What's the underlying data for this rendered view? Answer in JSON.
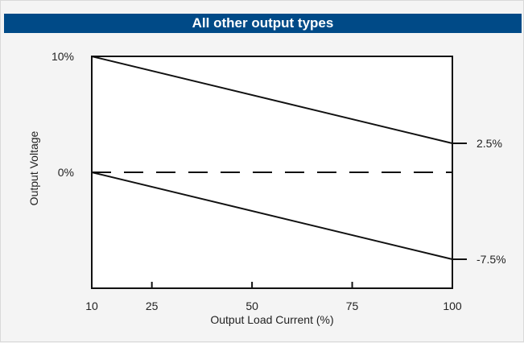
{
  "header": {
    "title": "All other output types"
  },
  "chart_data": {
    "type": "line",
    "xlabel": "Output Load Current (%)",
    "ylabel": "Output Voltage",
    "xlim": [
      10,
      100
    ],
    "ylim": [
      -10,
      10
    ],
    "x_ticks": [
      10,
      25,
      50,
      75,
      100
    ],
    "y_tick_labels": [
      {
        "value": 10,
        "label": "10%"
      },
      {
        "value": 0,
        "label": "0%"
      }
    ],
    "right_labels": [
      {
        "value": 2.5,
        "label": "2.5%"
      },
      {
        "value": -7.5,
        "label": "-7.5%"
      }
    ],
    "series": [
      {
        "x": [
          10,
          100
        ],
        "y": [
          10,
          2.5
        ],
        "style": "solid"
      },
      {
        "x": [
          10,
          100
        ],
        "y": [
          0,
          0
        ],
        "style": "dashed"
      },
      {
        "x": [
          10,
          100
        ],
        "y": [
          0,
          -7.5
        ],
        "style": "solid"
      }
    ],
    "grid": false,
    "colors": {
      "line": "#111111",
      "header_bg": "#004a87"
    }
  }
}
